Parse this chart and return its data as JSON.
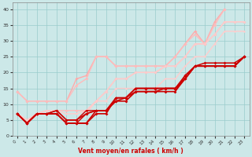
{
  "xlabel": "Vent moyen/en rafales ( km/h )",
  "background_color": "#cce8e8",
  "grid_color": "#99cccc",
  "xlim": [
    -0.5,
    23.5
  ],
  "ylim": [
    0,
    42
  ],
  "xticks": [
    0,
    1,
    2,
    3,
    4,
    5,
    6,
    7,
    8,
    9,
    10,
    11,
    12,
    13,
    14,
    15,
    16,
    17,
    18,
    19,
    20,
    21,
    22,
    23
  ],
  "yticks": [
    0,
    5,
    10,
    15,
    20,
    25,
    30,
    35,
    40
  ],
  "lines": [
    {
      "x": [
        0,
        1,
        2,
        3,
        4,
        5,
        6,
        7,
        8,
        9,
        10,
        11,
        12,
        13,
        14,
        15,
        16,
        17,
        18,
        19,
        20,
        21
      ],
      "y": [
        14,
        11,
        11,
        11,
        11,
        11,
        18,
        19,
        25,
        25,
        22,
        22,
        22,
        22,
        22,
        22,
        25,
        29,
        33,
        29,
        36,
        40
      ],
      "color": "#ffaaaa",
      "lw": 1.0,
      "ms": 2.0
    },
    {
      "x": [
        0,
        1,
        2,
        3,
        4,
        5,
        6,
        7,
        8,
        9,
        10,
        11,
        12,
        13,
        14,
        15,
        16,
        17,
        18,
        19,
        20,
        21
      ],
      "y": [
        14,
        11,
        11,
        11,
        11,
        11,
        16,
        18,
        25,
        25,
        22,
        22,
        22,
        22,
        22,
        22,
        25,
        29,
        32,
        29,
        35,
        40
      ],
      "color": "#ffbbbb",
      "lw": 1.0,
      "ms": 2.0
    },
    {
      "x": [
        0,
        1,
        2,
        3,
        4,
        5,
        6,
        7,
        8,
        9,
        10,
        11,
        12,
        13,
        14,
        15,
        16,
        17,
        18,
        19,
        20,
        21,
        22,
        23
      ],
      "y": [
        7,
        5,
        7,
        8,
        8,
        8,
        8,
        8,
        11,
        14,
        18,
        18,
        20,
        20,
        20,
        22,
        22,
        25,
        29,
        29,
        32,
        36,
        36,
        36
      ],
      "color": "#ffbbbb",
      "lw": 1.0,
      "ms": 2.0
    },
    {
      "x": [
        0,
        1,
        2,
        3,
        4,
        5,
        6,
        7,
        8,
        9,
        10,
        11,
        12,
        13,
        14,
        15,
        16,
        17,
        18,
        19,
        20,
        21,
        22,
        23
      ],
      "y": [
        7,
        5,
        7,
        8,
        8,
        7,
        7,
        8,
        11,
        14,
        18,
        18,
        20,
        20,
        20,
        22,
        22,
        25,
        29,
        29,
        32,
        36,
        36,
        36
      ],
      "color": "#ffcccc",
      "lw": 1.0,
      "ms": 1.5
    },
    {
      "x": [
        0,
        1,
        2,
        3,
        4,
        5,
        6,
        7,
        8,
        9,
        10,
        11,
        12,
        13,
        14,
        15,
        16,
        17,
        18,
        19,
        20,
        21,
        22,
        23
      ],
      "y": [
        7,
        5,
        7,
        7,
        7,
        4,
        4,
        7,
        11,
        11,
        15,
        15,
        15,
        15,
        15,
        18,
        18,
        22,
        25,
        25,
        29,
        33,
        33,
        33
      ],
      "color": "#ffcccc",
      "lw": 1.0,
      "ms": 1.5
    },
    {
      "x": [
        0,
        1,
        2,
        3,
        4,
        5,
        6,
        7,
        8,
        9,
        10,
        11,
        12,
        13,
        14,
        15,
        16,
        17,
        18,
        19,
        20,
        21,
        22,
        23
      ],
      "y": [
        7,
        4,
        7,
        7,
        7,
        4,
        4,
        4,
        7,
        7,
        12,
        12,
        15,
        15,
        15,
        15,
        15,
        18,
        22,
        22,
        22,
        22,
        22,
        25
      ],
      "color": "#cc0000",
      "lw": 1.2,
      "ms": 2.0
    },
    {
      "x": [
        0,
        1,
        2,
        3,
        4,
        5,
        6,
        7,
        8,
        9,
        10,
        11,
        12,
        13,
        14,
        15,
        16,
        17,
        18,
        19,
        20,
        21,
        22,
        23
      ],
      "y": [
        7,
        4,
        7,
        7,
        7,
        4,
        4,
        4,
        8,
        8,
        12,
        12,
        15,
        15,
        15,
        15,
        15,
        18,
        22,
        22,
        22,
        22,
        22,
        25
      ],
      "color": "#cc0000",
      "lw": 1.2,
      "ms": 2.0
    },
    {
      "x": [
        0,
        1,
        2,
        3,
        4,
        5,
        6,
        7,
        8,
        9,
        10,
        11,
        12,
        13,
        14,
        15,
        16,
        17,
        18,
        19,
        20,
        21,
        22,
        23
      ],
      "y": [
        7,
        4,
        7,
        7,
        8,
        5,
        5,
        7,
        8,
        8,
        11,
        12,
        14,
        14,
        14,
        15,
        15,
        19,
        22,
        23,
        23,
        23,
        23,
        25
      ],
      "color": "#cc0000",
      "lw": 1.1,
      "ms": 2.0
    },
    {
      "x": [
        0,
        1,
        2,
        3,
        4,
        5,
        6,
        7,
        8,
        9,
        10,
        11,
        12,
        13,
        14,
        15,
        16,
        17,
        18,
        19,
        20,
        21,
        22,
        23
      ],
      "y": [
        7,
        4,
        7,
        7,
        8,
        5,
        5,
        8,
        8,
        8,
        11,
        11,
        14,
        14,
        14,
        14,
        14,
        19,
        22,
        22,
        22,
        22,
        22,
        25
      ],
      "color": "#cc0000",
      "lw": 1.0,
      "ms": 1.8
    },
    {
      "x": [
        0,
        1,
        2,
        3,
        4,
        5,
        6,
        7,
        8,
        9,
        10,
        11,
        12,
        13,
        14,
        15,
        16,
        17,
        18,
        19,
        20,
        21,
        22,
        23
      ],
      "y": [
        7,
        4,
        7,
        7,
        7,
        4,
        4,
        7,
        8,
        8,
        11,
        11,
        14,
        14,
        14,
        14,
        14,
        18,
        22,
        22,
        22,
        22,
        22,
        25
      ],
      "color": "#cc0000",
      "lw": 1.0,
      "ms": 1.8
    }
  ]
}
